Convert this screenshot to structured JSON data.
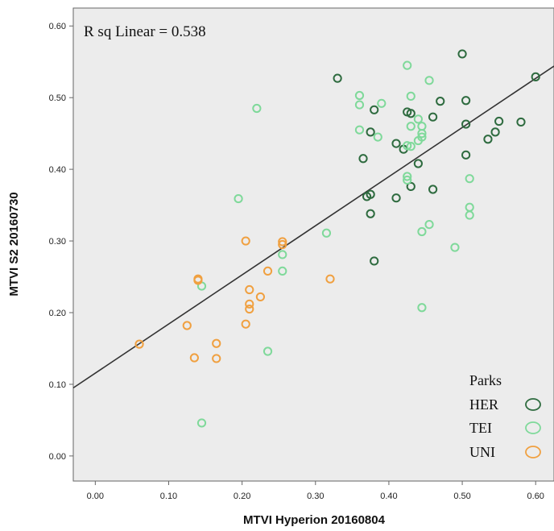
{
  "chart_data": {
    "type": "scatter",
    "title": "",
    "annotation": "R sq Linear = 0.538",
    "xlabel": "MTVI Hyperion 20160804",
    "ylabel": "MTVI S2 20160730",
    "xlim": [
      -0.03,
      0.625
    ],
    "ylim": [
      -0.035,
      0.625
    ],
    "xticks": [
      "0.00",
      "0.10",
      "0.20",
      "0.30",
      "0.40",
      "0.50",
      "0.60"
    ],
    "yticks": [
      "0.00",
      "0.10",
      "0.20",
      "0.30",
      "0.40",
      "0.50",
      "0.60"
    ],
    "grid": false,
    "legend": {
      "title": "Parks",
      "position": "bottom-right",
      "entries": [
        "HER",
        "TEI",
        "UNI"
      ]
    },
    "fit_line": {
      "x": [
        -0.03,
        0.625
      ],
      "y": [
        0.095,
        0.544
      ]
    },
    "series": [
      {
        "name": "HER",
        "color": "#2e6b3f",
        "x": [
          0.33,
          0.38,
          0.375,
          0.365,
          0.425,
          0.43,
          0.47,
          0.46,
          0.505,
          0.5,
          0.6,
          0.505,
          0.55,
          0.58,
          0.545,
          0.535,
          0.41,
          0.42,
          0.505,
          0.44,
          0.375,
          0.37,
          0.43,
          0.46,
          0.41,
          0.375,
          0.38
        ],
        "y": [
          0.527,
          0.483,
          0.452,
          0.415,
          0.48,
          0.478,
          0.495,
          0.473,
          0.496,
          0.561,
          0.529,
          0.463,
          0.467,
          0.466,
          0.452,
          0.442,
          0.436,
          0.428,
          0.42,
          0.408,
          0.365,
          0.362,
          0.376,
          0.372,
          0.36,
          0.338,
          0.272
        ]
      },
      {
        "name": "TEI",
        "color": "#7fd99a",
        "x": [
          0.22,
          0.36,
          0.36,
          0.39,
          0.425,
          0.43,
          0.455,
          0.44,
          0.445,
          0.445,
          0.43,
          0.445,
          0.425,
          0.44,
          0.43,
          0.425,
          0.36,
          0.385,
          0.51,
          0.425,
          0.195,
          0.51,
          0.51,
          0.455,
          0.445,
          0.315,
          0.255,
          0.49,
          0.255,
          0.145,
          0.235,
          0.445,
          0.145
        ],
        "y": [
          0.485,
          0.503,
          0.49,
          0.492,
          0.545,
          0.502,
          0.524,
          0.47,
          0.46,
          0.45,
          0.46,
          0.445,
          0.433,
          0.44,
          0.432,
          0.39,
          0.455,
          0.445,
          0.387,
          0.385,
          0.359,
          0.347,
          0.336,
          0.323,
          0.313,
          0.311,
          0.281,
          0.291,
          0.258,
          0.237,
          0.146,
          0.207,
          0.046
        ]
      },
      {
        "name": "UNI",
        "color": "#f0a040",
        "x": [
          0.205,
          0.255,
          0.255,
          0.235,
          0.14,
          0.14,
          0.32,
          0.21,
          0.225,
          0.21,
          0.21,
          0.205,
          0.125,
          0.06,
          0.165,
          0.135,
          0.165
        ],
        "y": [
          0.3,
          0.299,
          0.295,
          0.258,
          0.247,
          0.245,
          0.247,
          0.232,
          0.222,
          0.212,
          0.205,
          0.184,
          0.182,
          0.156,
          0.157,
          0.137,
          0.136
        ]
      }
    ]
  }
}
